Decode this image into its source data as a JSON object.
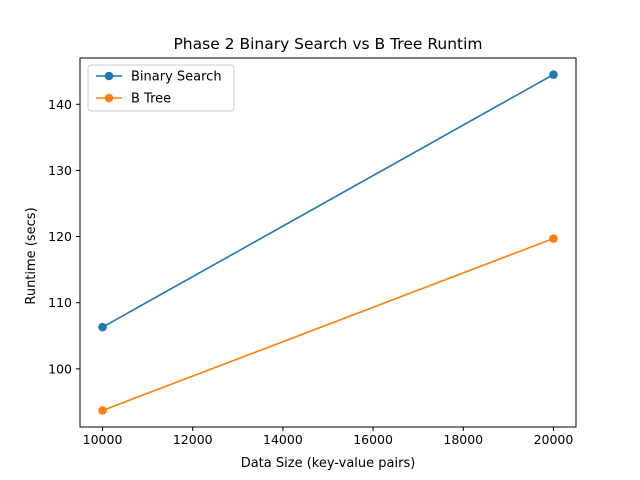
{
  "chart_data": {
    "type": "line",
    "title": "Phase 2 Binary Search vs B Tree Runtim",
    "xlabel": "Data Size (key-value pairs)",
    "ylabel": "Runtime (secs)",
    "x": [
      10000,
      20000
    ],
    "xlim": [
      9500,
      20500
    ],
    "ylim": [
      91.2,
      147.0
    ],
    "xticks": [
      10000,
      12000,
      14000,
      16000,
      18000,
      20000
    ],
    "yticks": [
      100,
      110,
      120,
      130,
      140
    ],
    "grid": false,
    "legend_position": "upper-left",
    "series": [
      {
        "name": "Binary Search",
        "color": "#1f77b4",
        "values": [
          106.3,
          144.5
        ]
      },
      {
        "name": "B Tree",
        "color": "#ff7f0e",
        "values": [
          93.7,
          119.7
        ]
      }
    ]
  }
}
